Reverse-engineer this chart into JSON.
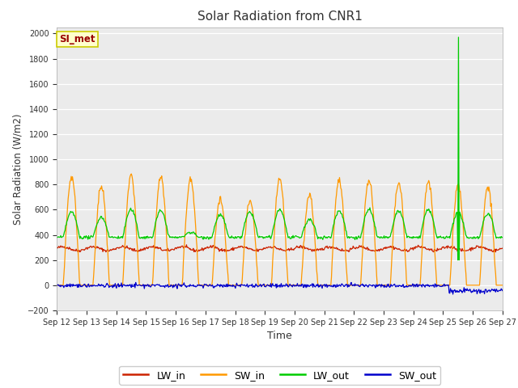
{
  "title": "Solar Radiation from CNR1",
  "xlabel": "Time",
  "ylabel": "Solar Radiation (W/m2)",
  "ylim": [
    -200,
    2050
  ],
  "yticks": [
    -200,
    0,
    200,
    400,
    600,
    800,
    1000,
    1200,
    1400,
    1600,
    1800,
    2000
  ],
  "fig_bg_color": "#ffffff",
  "plot_bg_color": "#ebebeb",
  "line_colors": {
    "LW_in": "#cc2200",
    "SW_in": "#ff9900",
    "LW_out": "#00cc00",
    "SW_out": "#0000cc"
  },
  "legend_labels": [
    "LW_in",
    "SW_in",
    "LW_out",
    "SW_out"
  ],
  "station_label": "SI_met",
  "n_days": 15,
  "start_day": 12,
  "pts_per_day": 48
}
